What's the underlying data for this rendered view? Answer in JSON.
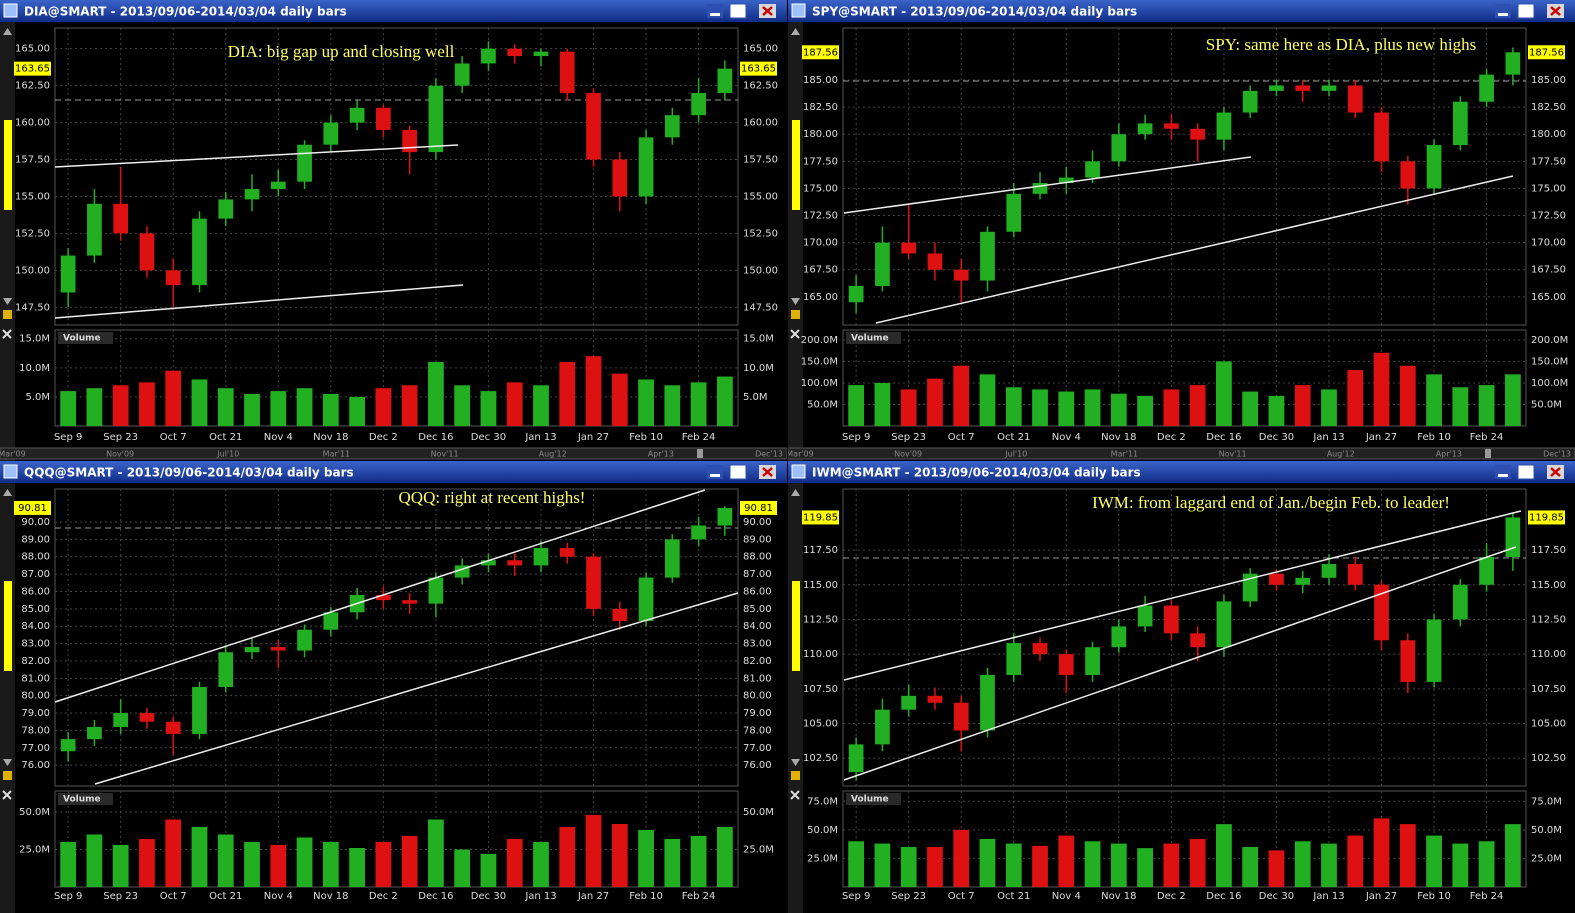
{
  "chart_data": [
    {
      "type": "candlestick",
      "title": "DIA@SMART - 2013/09/06-2014/03/04 daily bars",
      "annotation": "DIA: big gap up and closing well",
      "volume_label": "Volume",
      "categories": [
        "Sep 9",
        null,
        "Sep 23",
        null,
        "Oct 7",
        null,
        "Oct 21",
        null,
        "Nov 4",
        null,
        "Nov 18",
        null,
        "Dec 2",
        null,
        "Dec 16",
        null,
        "Dec 30",
        null,
        "Jan 13",
        null,
        "Jan 27",
        null,
        "Feb 10",
        null,
        "Feb 24",
        null
      ],
      "open": [
        148.5,
        151.0,
        154.5,
        152.5,
        150.0,
        149.0,
        153.5,
        154.8,
        155.5,
        156.0,
        158.5,
        160.0,
        161.0,
        159.5,
        158.0,
        162.5,
        164.0,
        165.0,
        164.5,
        164.8,
        162.0,
        157.5,
        155.0,
        159.0,
        160.5,
        162.0
      ],
      "high": [
        151.5,
        155.5,
        157.0,
        153.0,
        150.8,
        154.0,
        155.3,
        156.5,
        156.8,
        158.8,
        160.5,
        161.5,
        161.2,
        159.8,
        163.0,
        164.5,
        165.5,
        165.3,
        165.0,
        165.0,
        162.3,
        158.0,
        159.5,
        161.0,
        163.0,
        164.2
      ],
      "low": [
        147.5,
        150.5,
        152.0,
        149.5,
        147.5,
        148.5,
        153.0,
        154.0,
        155.0,
        155.5,
        158.0,
        159.5,
        159.0,
        156.5,
        157.5,
        162.0,
        163.5,
        164.0,
        163.8,
        161.5,
        157.0,
        154.0,
        154.5,
        158.5,
        160.0,
        161.5
      ],
      "close": [
        151.0,
        154.5,
        152.5,
        150.0,
        149.0,
        153.5,
        154.8,
        155.5,
        156.0,
        158.5,
        160.0,
        161.0,
        159.5,
        158.0,
        162.5,
        164.0,
        165.0,
        164.5,
        164.8,
        162.0,
        157.5,
        155.0,
        159.0,
        160.5,
        162.0,
        163.65
      ],
      "volume": [
        6,
        6.5,
        7,
        7.5,
        9.5,
        8,
        6.5,
        5.5,
        6,
        6.5,
        5.5,
        5,
        6.5,
        7,
        11,
        7,
        6,
        7.5,
        7,
        11,
        12,
        9,
        8,
        7,
        7.5,
        8.5
      ],
      "ylim": [
        146.3,
        166.4
      ],
      "yticks": [
        {
          "value": 147.5,
          "label": "147.50"
        },
        {
          "value": 150,
          "label": "150.00"
        },
        {
          "value": 152.5,
          "label": "152.50"
        },
        {
          "value": 155,
          "label": "155.00"
        },
        {
          "value": 157.5,
          "label": "157.50"
        },
        {
          "value": 160,
          "label": "160.00"
        },
        {
          "value": 162.5,
          "label": "162.50"
        },
        {
          "value": 165,
          "label": "165.00"
        }
      ],
      "last_price": 163.65,
      "volume_ylim": [
        0,
        16.5
      ],
      "volume_yticks": [
        {
          "value": 5,
          "label": "5.0M"
        },
        {
          "value": 10,
          "label": "10.0M"
        },
        {
          "value": 15,
          "label": "15.0M"
        }
      ],
      "up_color": "#22b022",
      "down_color": "#dd1111",
      "grid": true
    },
    {
      "type": "candlestick",
      "title": "SPY@SMART - 2013/09/06-2014/03/04 daily bars",
      "annotation": "SPY: same here as DIA, plus new highs",
      "volume_label": "Volume",
      "categories": [
        "Sep 9",
        null,
        "Sep 23",
        null,
        "Oct 7",
        null,
        "Oct 21",
        null,
        "Nov 4",
        null,
        "Nov 18",
        null,
        "Dec 2",
        null,
        "Dec 16",
        null,
        "Dec 30",
        null,
        "Jan 13",
        null,
        "Jan 27",
        null,
        "Feb 10",
        null,
        "Feb 24",
        null
      ],
      "open": [
        164.5,
        166.0,
        170.0,
        169.0,
        167.5,
        166.5,
        171.0,
        174.5,
        175.5,
        176.0,
        177.5,
        180.0,
        181.0,
        180.5,
        179.5,
        182.0,
        184.0,
        184.5,
        184.0,
        184.5,
        182.0,
        177.5,
        175.0,
        179.0,
        183.0,
        185.5
      ],
      "high": [
        167.0,
        171.5,
        173.5,
        170.0,
        168.5,
        171.5,
        175.5,
        176.5,
        177.0,
        178.5,
        181.0,
        181.8,
        181.8,
        181.0,
        182.5,
        184.5,
        185.0,
        185.0,
        185.0,
        185.0,
        182.5,
        178.0,
        179.5,
        183.5,
        186.0,
        188.0
      ],
      "low": [
        163.5,
        165.5,
        168.5,
        166.5,
        164.5,
        165.5,
        170.5,
        174.0,
        174.5,
        175.5,
        177.0,
        179.5,
        179.5,
        177.5,
        178.5,
        181.5,
        183.5,
        183.0,
        183.5,
        181.5,
        176.5,
        173.5,
        174.5,
        178.5,
        182.5,
        184.5
      ],
      "close": [
        166.0,
        170.0,
        169.0,
        167.5,
        166.5,
        171.0,
        174.5,
        175.5,
        176.0,
        177.5,
        180.0,
        181.0,
        180.5,
        179.5,
        182.0,
        184.0,
        184.5,
        184.0,
        184.5,
        182.0,
        177.5,
        175.0,
        179.0,
        183.0,
        185.5,
        187.56
      ],
      "volume": [
        95,
        100,
        85,
        110,
        140,
        120,
        90,
        85,
        80,
        85,
        75,
        70,
        85,
        95,
        150,
        80,
        70,
        95,
        85,
        130,
        170,
        140,
        120,
        90,
        95,
        120
      ],
      "ylim": [
        162.4,
        189.8
      ],
      "yticks": [
        {
          "value": 165,
          "label": "165.00"
        },
        {
          "value": 167.5,
          "label": "167.50"
        },
        {
          "value": 170,
          "label": "170.00"
        },
        {
          "value": 172.5,
          "label": "172.50"
        },
        {
          "value": 175,
          "label": "175.00"
        },
        {
          "value": 177.5,
          "label": "177.50"
        },
        {
          "value": 180,
          "label": "180.00"
        },
        {
          "value": 182.5,
          "label": "182.50"
        },
        {
          "value": 185,
          "label": "185.00"
        }
      ],
      "last_price": 187.56,
      "volume_ylim": [
        0,
        223
      ],
      "volume_yticks": [
        {
          "value": 50,
          "label": "50.0M"
        },
        {
          "value": 100,
          "label": "100.0M"
        },
        {
          "value": 150,
          "label": "150.0M"
        },
        {
          "value": 200,
          "label": "200.0M"
        }
      ],
      "up_color": "#22b022",
      "down_color": "#dd1111",
      "grid": true
    },
    {
      "type": "candlestick",
      "title": "QQQ@SMART - 2013/09/06-2014/03/04 daily bars",
      "annotation": "QQQ: right at recent highs!",
      "volume_label": "Volume",
      "categories": [
        "Sep 9",
        null,
        "Sep 23",
        null,
        "Oct 7",
        null,
        "Oct 21",
        null,
        "Nov 4",
        null,
        "Nov 18",
        null,
        "Dec 2",
        null,
        "Dec 16",
        null,
        "Dec 30",
        null,
        "Jan 13",
        null,
        "Jan 27",
        null,
        "Feb 10",
        null,
        "Feb 24",
        null
      ],
      "open": [
        76.8,
        77.5,
        78.2,
        79.0,
        78.5,
        77.8,
        80.5,
        82.5,
        82.8,
        82.6,
        83.8,
        84.8,
        85.8,
        85.5,
        85.3,
        86.8,
        87.5,
        87.8,
        87.5,
        88.5,
        88.0,
        85.0,
        84.3,
        86.8,
        89.0,
        89.8
      ],
      "high": [
        77.9,
        78.6,
        79.8,
        79.3,
        78.8,
        80.8,
        82.9,
        83.3,
        83.2,
        84.1,
        85.1,
        86.2,
        86.3,
        85.9,
        87.1,
        87.9,
        88.2,
        88.2,
        88.9,
        88.8,
        88.2,
        85.4,
        87.1,
        89.3,
        90.3,
        90.9
      ],
      "low": [
        76.2,
        77.1,
        77.8,
        78.1,
        76.6,
        77.5,
        80.2,
        82.1,
        81.6,
        82.2,
        83.4,
        84.4,
        85.0,
        84.7,
        84.5,
        86.4,
        87.1,
        86.9,
        87.1,
        87.6,
        84.6,
        83.8,
        84.0,
        86.5,
        88.6,
        89.2
      ],
      "close": [
        77.5,
        78.2,
        79.0,
        78.5,
        77.8,
        80.5,
        82.5,
        82.8,
        82.6,
        83.8,
        84.8,
        85.8,
        85.5,
        85.3,
        86.8,
        87.5,
        87.8,
        87.5,
        88.5,
        88.0,
        85.0,
        84.3,
        86.8,
        89.0,
        89.8,
        90.81
      ],
      "volume": [
        30,
        35,
        28,
        32,
        45,
        40,
        35,
        30,
        28,
        33,
        30,
        26,
        30,
        34,
        45,
        25,
        22,
        32,
        30,
        40,
        48,
        42,
        38,
        32,
        34,
        40
      ],
      "ylim": [
        74.8,
        91.9
      ],
      "yticks": [
        {
          "value": 76,
          "label": "76.00"
        },
        {
          "value": 77,
          "label": "77.00"
        },
        {
          "value": 78,
          "label": "78.00"
        },
        {
          "value": 79,
          "label": "79.00"
        },
        {
          "value": 80,
          "label": "80.00"
        },
        {
          "value": 81,
          "label": "81.00"
        },
        {
          "value": 82,
          "label": "82.00"
        },
        {
          "value": 83,
          "label": "83.00"
        },
        {
          "value": 84,
          "label": "84.00"
        },
        {
          "value": 85,
          "label": "85.00"
        },
        {
          "value": 86,
          "label": "86.00"
        },
        {
          "value": 87,
          "label": "87.00"
        },
        {
          "value": 88,
          "label": "88.00"
        },
        {
          "value": 89,
          "label": "89.00"
        },
        {
          "value": 90,
          "label": "90.00"
        }
      ],
      "last_price": 90.81,
      "volume_ylim": [
        0,
        64
      ],
      "volume_yticks": [
        {
          "value": 25,
          "label": "25.0M"
        },
        {
          "value": 50,
          "label": "50.0M"
        }
      ],
      "up_color": "#22b022",
      "down_color": "#dd1111",
      "grid": true
    },
    {
      "type": "candlestick",
      "title": "IWM@SMART - 2013/09/06-2014/03/04 daily bars",
      "annotation": "IWM: from laggard end of Jan./begin Feb. to leader!",
      "volume_label": "Volume",
      "categories": [
        "Sep 9",
        null,
        "Sep 23",
        null,
        "Oct 7",
        null,
        "Oct 21",
        null,
        "Nov 4",
        null,
        "Nov 18",
        null,
        "Dec 2",
        null,
        "Dec 16",
        null,
        "Dec 30",
        null,
        "Jan 13",
        null,
        "Jan 27",
        null,
        "Feb 10",
        null,
        "Feb 24",
        null
      ],
      "open": [
        101.5,
        103.5,
        106.0,
        107.0,
        106.5,
        104.5,
        108.5,
        110.8,
        110.0,
        108.5,
        110.5,
        112.0,
        113.5,
        111.5,
        110.5,
        113.8,
        115.8,
        115.0,
        115.5,
        116.5,
        115.0,
        111.0,
        108.0,
        112.5,
        115.0,
        117.0
      ],
      "high": [
        104.0,
        106.8,
        107.8,
        107.6,
        107.0,
        109.0,
        111.5,
        111.2,
        110.3,
        110.9,
        112.5,
        114.2,
        113.9,
        112.0,
        114.3,
        116.2,
        116.1,
        116.0,
        117.2,
        117.0,
        115.3,
        111.5,
        112.9,
        115.4,
        118.0,
        120.2
      ],
      "low": [
        100.9,
        103.0,
        105.5,
        106.0,
        103.0,
        104.0,
        108.0,
        109.5,
        107.2,
        108.0,
        110.1,
        111.6,
        111.0,
        109.5,
        109.8,
        113.4,
        114.6,
        114.4,
        115.0,
        114.6,
        110.3,
        107.2,
        107.6,
        112.0,
        114.5,
        116.0
      ],
      "close": [
        103.5,
        106.0,
        107.0,
        106.5,
        104.5,
        108.5,
        110.8,
        110.0,
        108.5,
        110.5,
        112.0,
        113.5,
        111.5,
        110.5,
        113.8,
        115.8,
        115.0,
        115.5,
        116.5,
        115.0,
        111.0,
        108.0,
        112.5,
        115.0,
        117.0,
        119.85
      ],
      "volume": [
        40,
        38,
        35,
        35,
        50,
        42,
        38,
        36,
        45,
        40,
        38,
        34,
        38,
        42,
        55,
        35,
        32,
        40,
        38,
        45,
        60,
        55,
        45,
        38,
        40,
        55
      ],
      "ylim": [
        100.5,
        121.9
      ],
      "yticks": [
        {
          "value": 102.5,
          "label": "102.50"
        },
        {
          "value": 105,
          "label": "105.00"
        },
        {
          "value": 107.5,
          "label": "107.50"
        },
        {
          "value": 110,
          "label": "110.00"
        },
        {
          "value": 112.5,
          "label": "112.50"
        },
        {
          "value": 115,
          "label": "115.00"
        },
        {
          "value": 117.5,
          "label": "117.50"
        }
      ],
      "last_price": 119.85,
      "volume_ylim": [
        0,
        84
      ],
      "volume_yticks": [
        {
          "value": 25,
          "label": "25.0M"
        },
        {
          "value": 50,
          "label": "50.0M"
        },
        {
          "value": 75,
          "label": "75.0M"
        }
      ],
      "up_color": "#22b022",
      "down_color": "#dd1111",
      "grid": true
    }
  ],
  "scrollbar": {
    "labels": [
      "Mar'09",
      "Nov'09",
      "Jul'10",
      "Mar'11",
      "Nov'11",
      "Aug'12",
      "Apr'13",
      "Dec'13"
    ]
  }
}
